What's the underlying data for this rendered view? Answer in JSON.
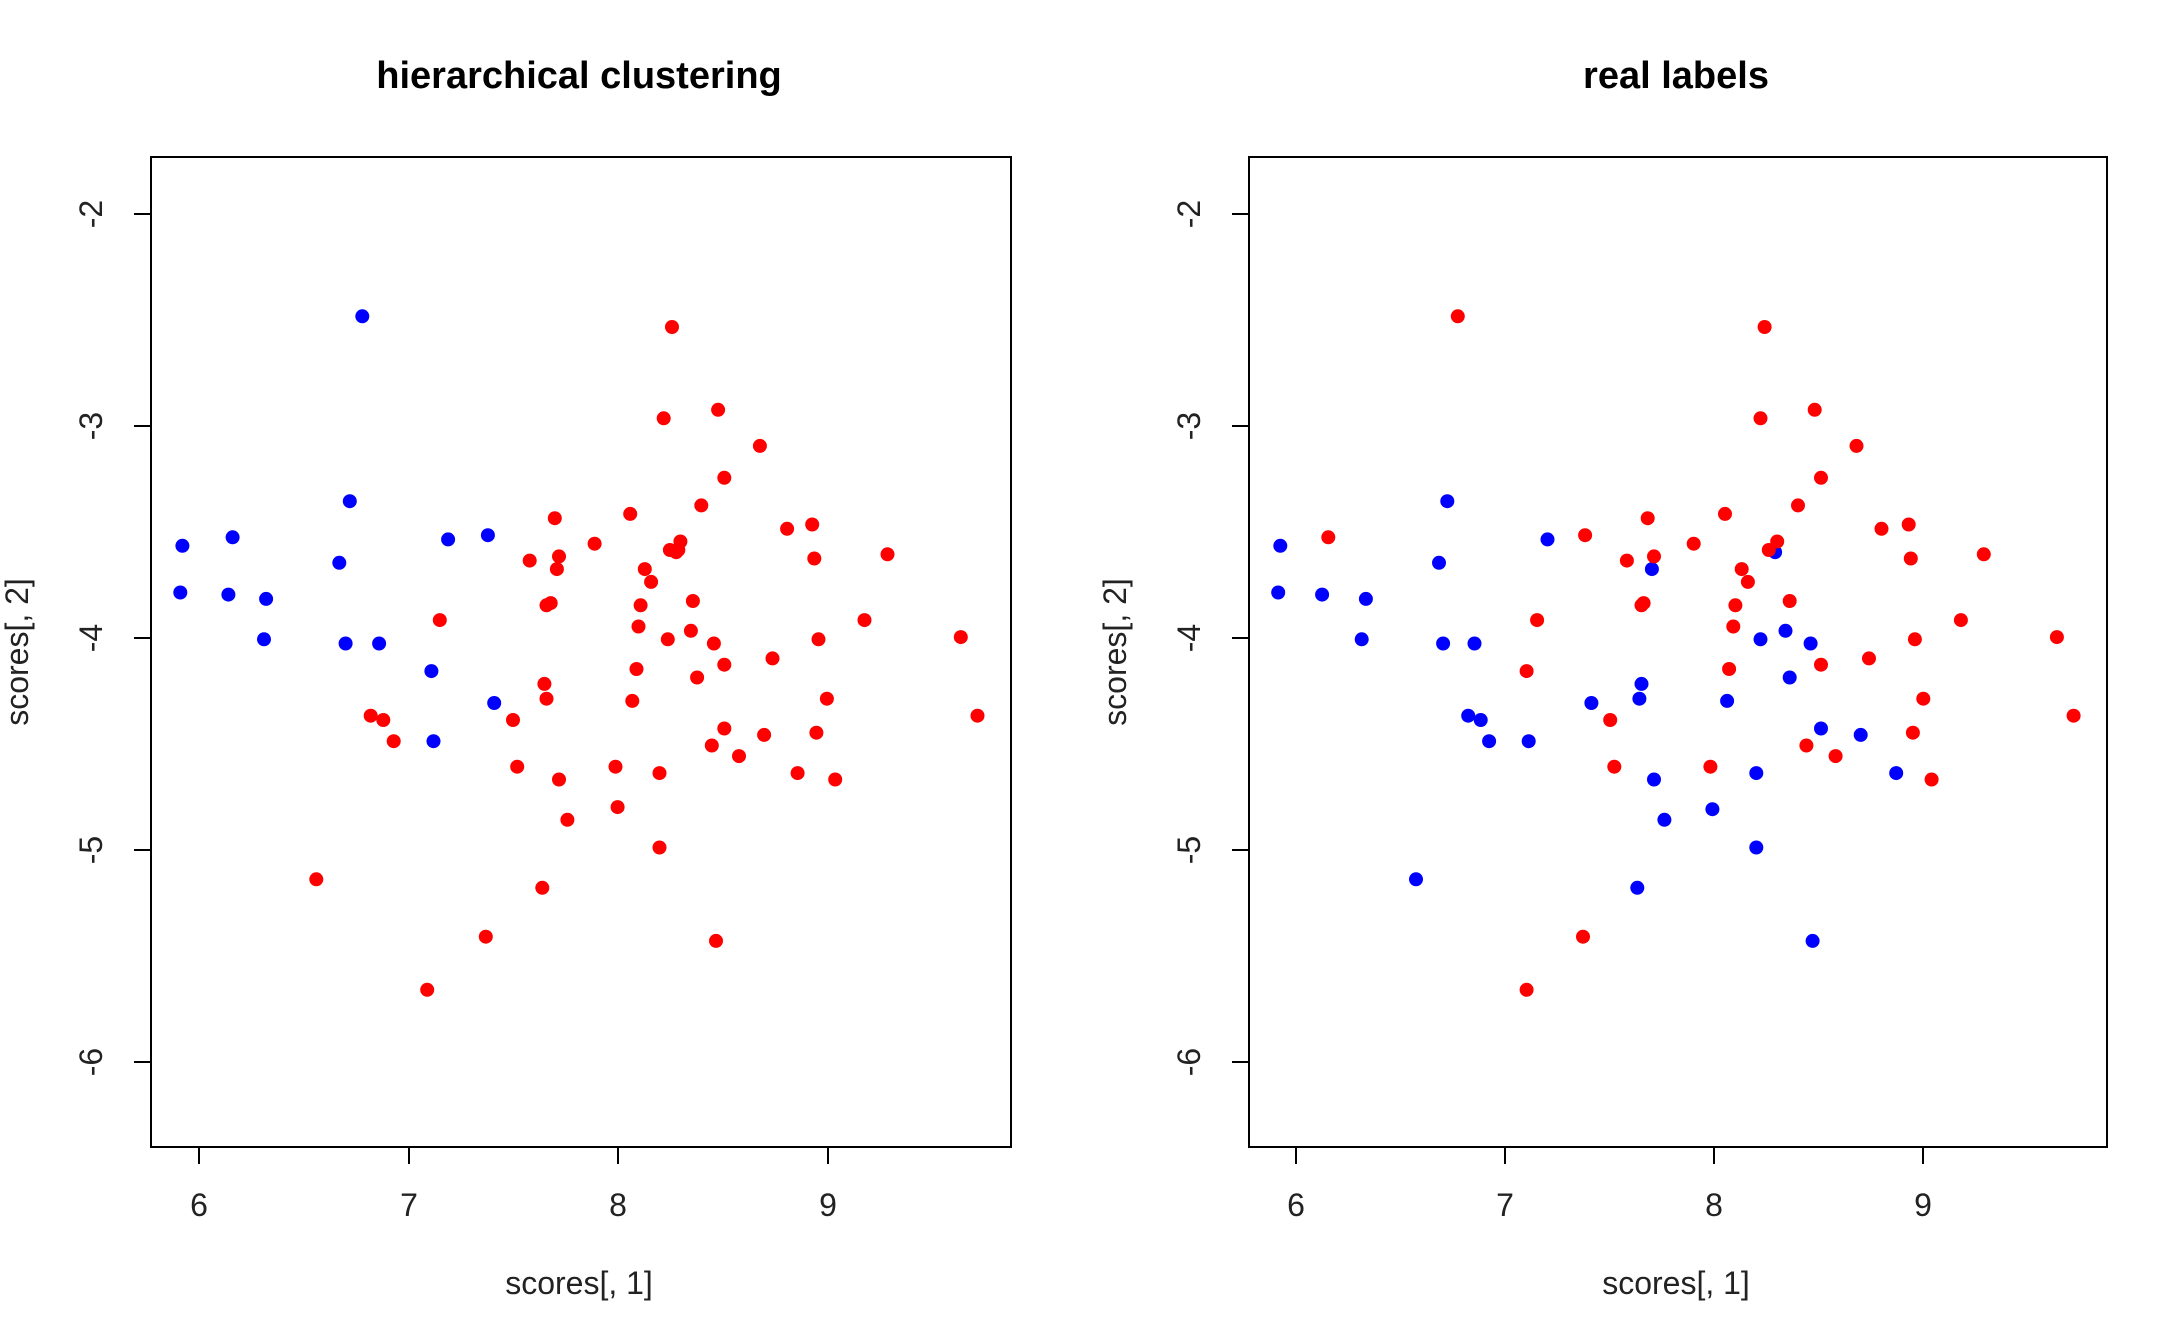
{
  "chart_data": [
    {
      "type": "scatter",
      "title": "hierarchical clustering",
      "xlabel": "scores[, 1]",
      "ylabel": "scores[, 2]",
      "xlim": [
        5.77,
        9.88
      ],
      "ylim": [
        -6.39,
        -1.73
      ],
      "xticks": [
        6,
        7,
        8,
        9
      ],
      "yticks": [
        -2,
        -3,
        -4,
        -5,
        -6
      ],
      "xtick_labels": [
        "6",
        "7",
        "8",
        "9"
      ],
      "ytick_labels": [
        "-2",
        "-3",
        "-4",
        "-5",
        "-6"
      ],
      "series": [
        {
          "color": "#0000ff",
          "points": [
            [
              5.92,
              -3.56
            ],
            [
              5.91,
              -3.78
            ],
            [
              6.14,
              -3.79
            ],
            [
              6.16,
              -3.52
            ],
            [
              6.32,
              -3.81
            ],
            [
              6.31,
              -4.0
            ],
            [
              6.67,
              -3.64
            ],
            [
              6.7,
              -4.02
            ],
            [
              6.72,
              -3.35
            ],
            [
              6.78,
              -2.48
            ],
            [
              6.86,
              -4.02
            ],
            [
              7.11,
              -4.15
            ],
            [
              7.12,
              -4.48
            ],
            [
              7.19,
              -3.53
            ],
            [
              7.38,
              -3.51
            ],
            [
              7.41,
              -4.3
            ]
          ]
        },
        {
          "color": "#ff0000",
          "points": [
            [
              6.56,
              -5.13
            ],
            [
              6.82,
              -4.36
            ],
            [
              6.88,
              -4.38
            ],
            [
              6.93,
              -4.48
            ],
            [
              7.09,
              -5.65
            ],
            [
              7.15,
              -3.91
            ],
            [
              7.37,
              -5.4
            ],
            [
              7.5,
              -4.38
            ],
            [
              7.52,
              -4.6
            ],
            [
              7.58,
              -3.63
            ],
            [
              7.64,
              -5.17
            ],
            [
              7.65,
              -4.21
            ],
            [
              7.66,
              -4.28
            ],
            [
              7.66,
              -3.84
            ],
            [
              7.68,
              -3.83
            ],
            [
              7.7,
              -3.43
            ],
            [
              7.71,
              -3.67
            ],
            [
              7.72,
              -3.61
            ],
            [
              7.72,
              -4.66
            ],
            [
              7.76,
              -4.85
            ],
            [
              7.89,
              -3.55
            ],
            [
              7.99,
              -4.6
            ],
            [
              8.0,
              -4.79
            ],
            [
              8.06,
              -3.41
            ],
            [
              8.07,
              -4.29
            ],
            [
              8.09,
              -4.14
            ],
            [
              8.1,
              -3.94
            ],
            [
              8.11,
              -3.84
            ],
            [
              8.13,
              -3.67
            ],
            [
              8.16,
              -3.73
            ],
            [
              8.2,
              -4.63
            ],
            [
              8.2,
              -4.98
            ],
            [
              8.22,
              -2.96
            ],
            [
              8.24,
              -4.0
            ],
            [
              8.25,
              -3.58
            ],
            [
              8.26,
              -2.53
            ],
            [
              8.28,
              -3.59
            ],
            [
              8.29,
              -3.58
            ],
            [
              8.3,
              -3.54
            ],
            [
              8.35,
              -3.96
            ],
            [
              8.36,
              -3.82
            ],
            [
              8.38,
              -4.18
            ],
            [
              8.4,
              -3.37
            ],
            [
              8.45,
              -4.5
            ],
            [
              8.46,
              -4.02
            ],
            [
              8.47,
              -5.42
            ],
            [
              8.48,
              -2.92
            ],
            [
              8.51,
              -4.42
            ],
            [
              8.51,
              -4.12
            ],
            [
              8.51,
              -3.24
            ],
            [
              8.58,
              -4.55
            ],
            [
              8.68,
              -3.09
            ],
            [
              8.7,
              -4.45
            ],
            [
              8.74,
              -4.09
            ],
            [
              8.81,
              -3.48
            ],
            [
              8.86,
              -4.63
            ],
            [
              8.93,
              -3.46
            ],
            [
              8.94,
              -3.62
            ],
            [
              8.95,
              -4.44
            ],
            [
              8.96,
              -4.0
            ],
            [
              9.0,
              -4.28
            ],
            [
              9.04,
              -4.66
            ],
            [
              9.18,
              -3.91
            ],
            [
              9.29,
              -3.6
            ],
            [
              9.64,
              -3.99
            ],
            [
              9.72,
              -4.36
            ]
          ]
        }
      ]
    },
    {
      "type": "scatter",
      "title": "real labels",
      "xlabel": "scores[, 1]",
      "ylabel": "scores[, 2]",
      "xlim": [
        5.77,
        9.88
      ],
      "ylim": [
        -6.39,
        -1.73
      ],
      "xticks": [
        6,
        7,
        8,
        9
      ],
      "yticks": [
        -2,
        -3,
        -4,
        -5,
        -6
      ],
      "xtick_labels": [
        "6",
        "7",
        "8",
        "9"
      ],
      "ytick_labels": [
        "-2",
        "-3",
        "-4",
        "-5",
        "-6"
      ],
      "series": [
        {
          "color": "#0000ff",
          "points": [
            [
              5.92,
              -3.56
            ],
            [
              5.91,
              -3.78
            ],
            [
              6.12,
              -3.79
            ],
            [
              6.31,
              -4.0
            ],
            [
              6.33,
              -3.81
            ],
            [
              6.57,
              -5.13
            ],
            [
              6.68,
              -3.64
            ],
            [
              6.7,
              -4.02
            ],
            [
              6.72,
              -3.35
            ],
            [
              6.82,
              -4.36
            ],
            [
              6.85,
              -4.02
            ],
            [
              6.88,
              -4.38
            ],
            [
              6.92,
              -4.48
            ],
            [
              7.11,
              -4.48
            ],
            [
              7.2,
              -3.53
            ],
            [
              7.41,
              -4.3
            ],
            [
              7.63,
              -5.17
            ],
            [
              7.64,
              -4.28
            ],
            [
              7.65,
              -4.21
            ],
            [
              7.7,
              -3.67
            ],
            [
              7.71,
              -4.66
            ],
            [
              7.76,
              -4.85
            ],
            [
              7.99,
              -4.8
            ],
            [
              8.06,
              -4.29
            ],
            [
              8.2,
              -4.63
            ],
            [
              8.2,
              -4.98
            ],
            [
              8.22,
              -4.0
            ],
            [
              8.29,
              -3.59
            ],
            [
              8.34,
              -3.96
            ],
            [
              8.36,
              -4.18
            ],
            [
              8.46,
              -4.02
            ],
            [
              8.47,
              -5.42
            ],
            [
              8.51,
              -4.42
            ],
            [
              8.7,
              -4.45
            ],
            [
              8.87,
              -4.63
            ]
          ]
        },
        {
          "color": "#ff0000",
          "points": [
            [
              6.15,
              -3.52
            ],
            [
              6.77,
              -2.48
            ],
            [
              7.1,
              -5.65
            ],
            [
              7.1,
              -4.15
            ],
            [
              7.15,
              -3.91
            ],
            [
              7.37,
              -5.4
            ],
            [
              7.38,
              -3.51
            ],
            [
              7.5,
              -4.38
            ],
            [
              7.52,
              -4.6
            ],
            [
              7.58,
              -3.63
            ],
            [
              7.65,
              -3.84
            ],
            [
              7.66,
              -3.83
            ],
            [
              7.68,
              -3.43
            ],
            [
              7.71,
              -3.61
            ],
            [
              7.9,
              -3.55
            ],
            [
              7.98,
              -4.6
            ],
            [
              8.05,
              -3.41
            ],
            [
              8.07,
              -4.14
            ],
            [
              8.09,
              -3.94
            ],
            [
              8.1,
              -3.84
            ],
            [
              8.13,
              -3.67
            ],
            [
              8.16,
              -3.73
            ],
            [
              8.22,
              -2.96
            ],
            [
              8.24,
              -2.53
            ],
            [
              8.26,
              -3.58
            ],
            [
              8.3,
              -3.54
            ],
            [
              8.36,
              -3.82
            ],
            [
              8.4,
              -3.37
            ],
            [
              8.44,
              -4.5
            ],
            [
              8.48,
              -2.92
            ],
            [
              8.51,
              -4.12
            ],
            [
              8.51,
              -3.24
            ],
            [
              8.58,
              -4.55
            ],
            [
              8.68,
              -3.09
            ],
            [
              8.74,
              -4.09
            ],
            [
              8.8,
              -3.48
            ],
            [
              8.93,
              -3.46
            ],
            [
              8.94,
              -3.62
            ],
            [
              8.95,
              -4.44
            ],
            [
              8.96,
              -4.0
            ],
            [
              9.0,
              -4.28
            ],
            [
              9.04,
              -4.66
            ],
            [
              9.18,
              -3.91
            ],
            [
              9.29,
              -3.6
            ],
            [
              9.64,
              -3.99
            ],
            [
              9.72,
              -4.36
            ]
          ]
        }
      ]
    }
  ]
}
